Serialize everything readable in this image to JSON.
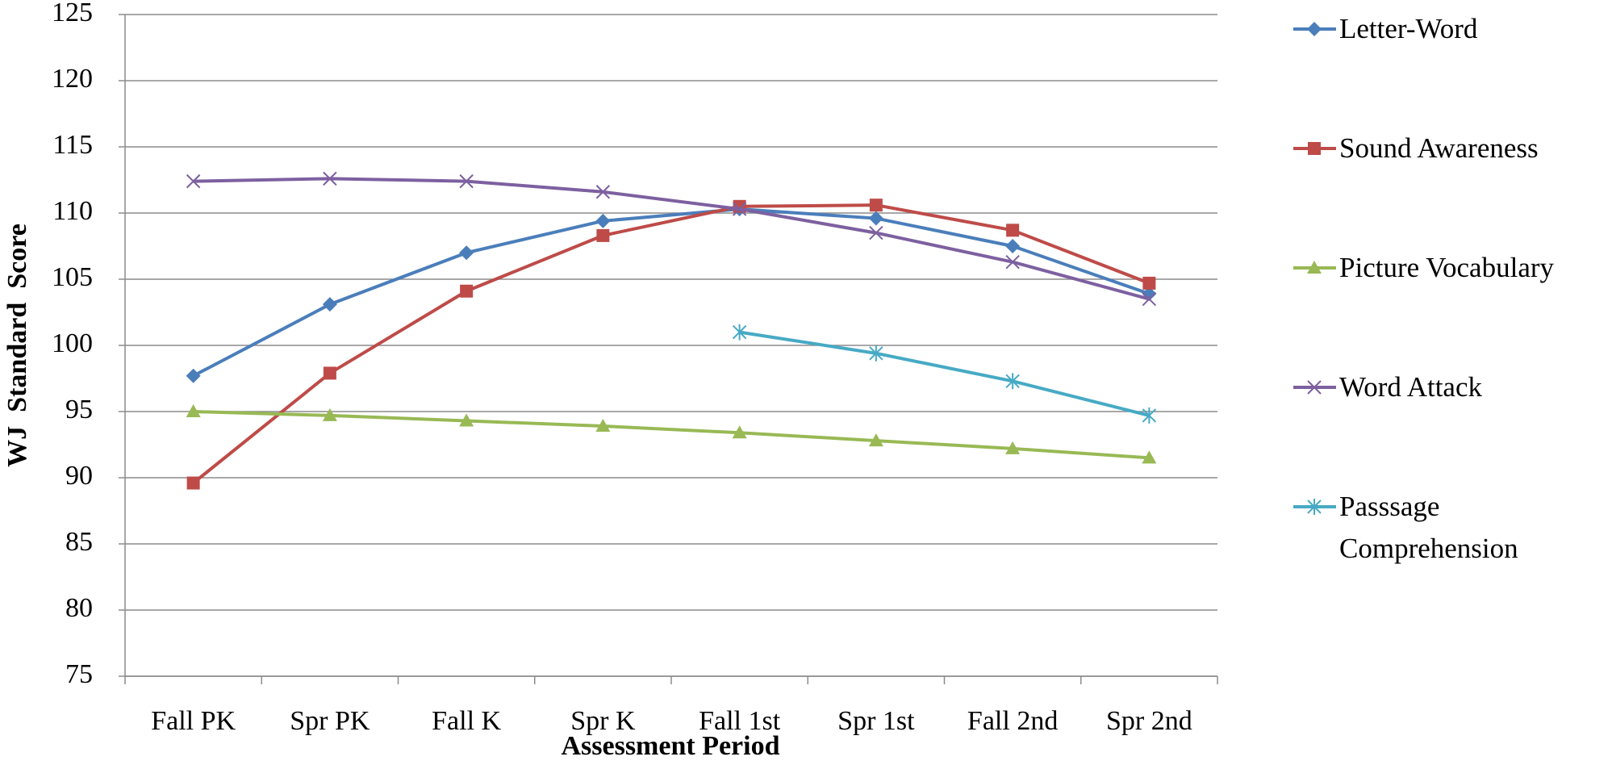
{
  "chart_data": {
    "type": "line",
    "x_label": "Assessment Period",
    "y_label": "WJ  Standard  Score",
    "categories": [
      "Fall PK",
      "Spr PK",
      "Fall K",
      "Spr K",
      "Fall 1st",
      "Spr 1st",
      "Fall 2nd",
      "Spr 2nd"
    ],
    "series": [
      {
        "name": "Letter-Word",
        "color": "#4a7ebb",
        "marker": "diamond",
        "values": [
          97.7,
          103.1,
          107.0,
          109.4,
          110.3,
          109.6,
          107.5,
          103.9
        ]
      },
      {
        "name": "Sound Awareness",
        "color": "#be4b48",
        "marker": "square",
        "values": [
          89.6,
          97.9,
          104.1,
          108.3,
          110.5,
          110.6,
          108.7,
          104.7
        ]
      },
      {
        "name": "Picture Vocabulary",
        "color": "#98b954",
        "marker": "triangle",
        "values": [
          95.0,
          94.7,
          94.3,
          93.9,
          93.4,
          92.8,
          92.2,
          91.5
        ]
      },
      {
        "name": "Word Attack",
        "color": "#7d60a0",
        "marker": "x",
        "values": [
          112.4,
          112.6,
          112.4,
          111.6,
          110.3,
          108.5,
          106.3,
          103.5
        ]
      },
      {
        "name": "Passsage Comprehension",
        "color": "#46aac5",
        "marker": "asterisk",
        "values": [
          null,
          null,
          null,
          null,
          101.0,
          99.4,
          97.3,
          94.7
        ]
      }
    ],
    "ylim": [
      75,
      125
    ],
    "yticks": [
      75,
      80,
      85,
      90,
      95,
      100,
      105,
      110,
      115,
      120,
      125
    ],
    "grid": true,
    "legend": "right"
  }
}
